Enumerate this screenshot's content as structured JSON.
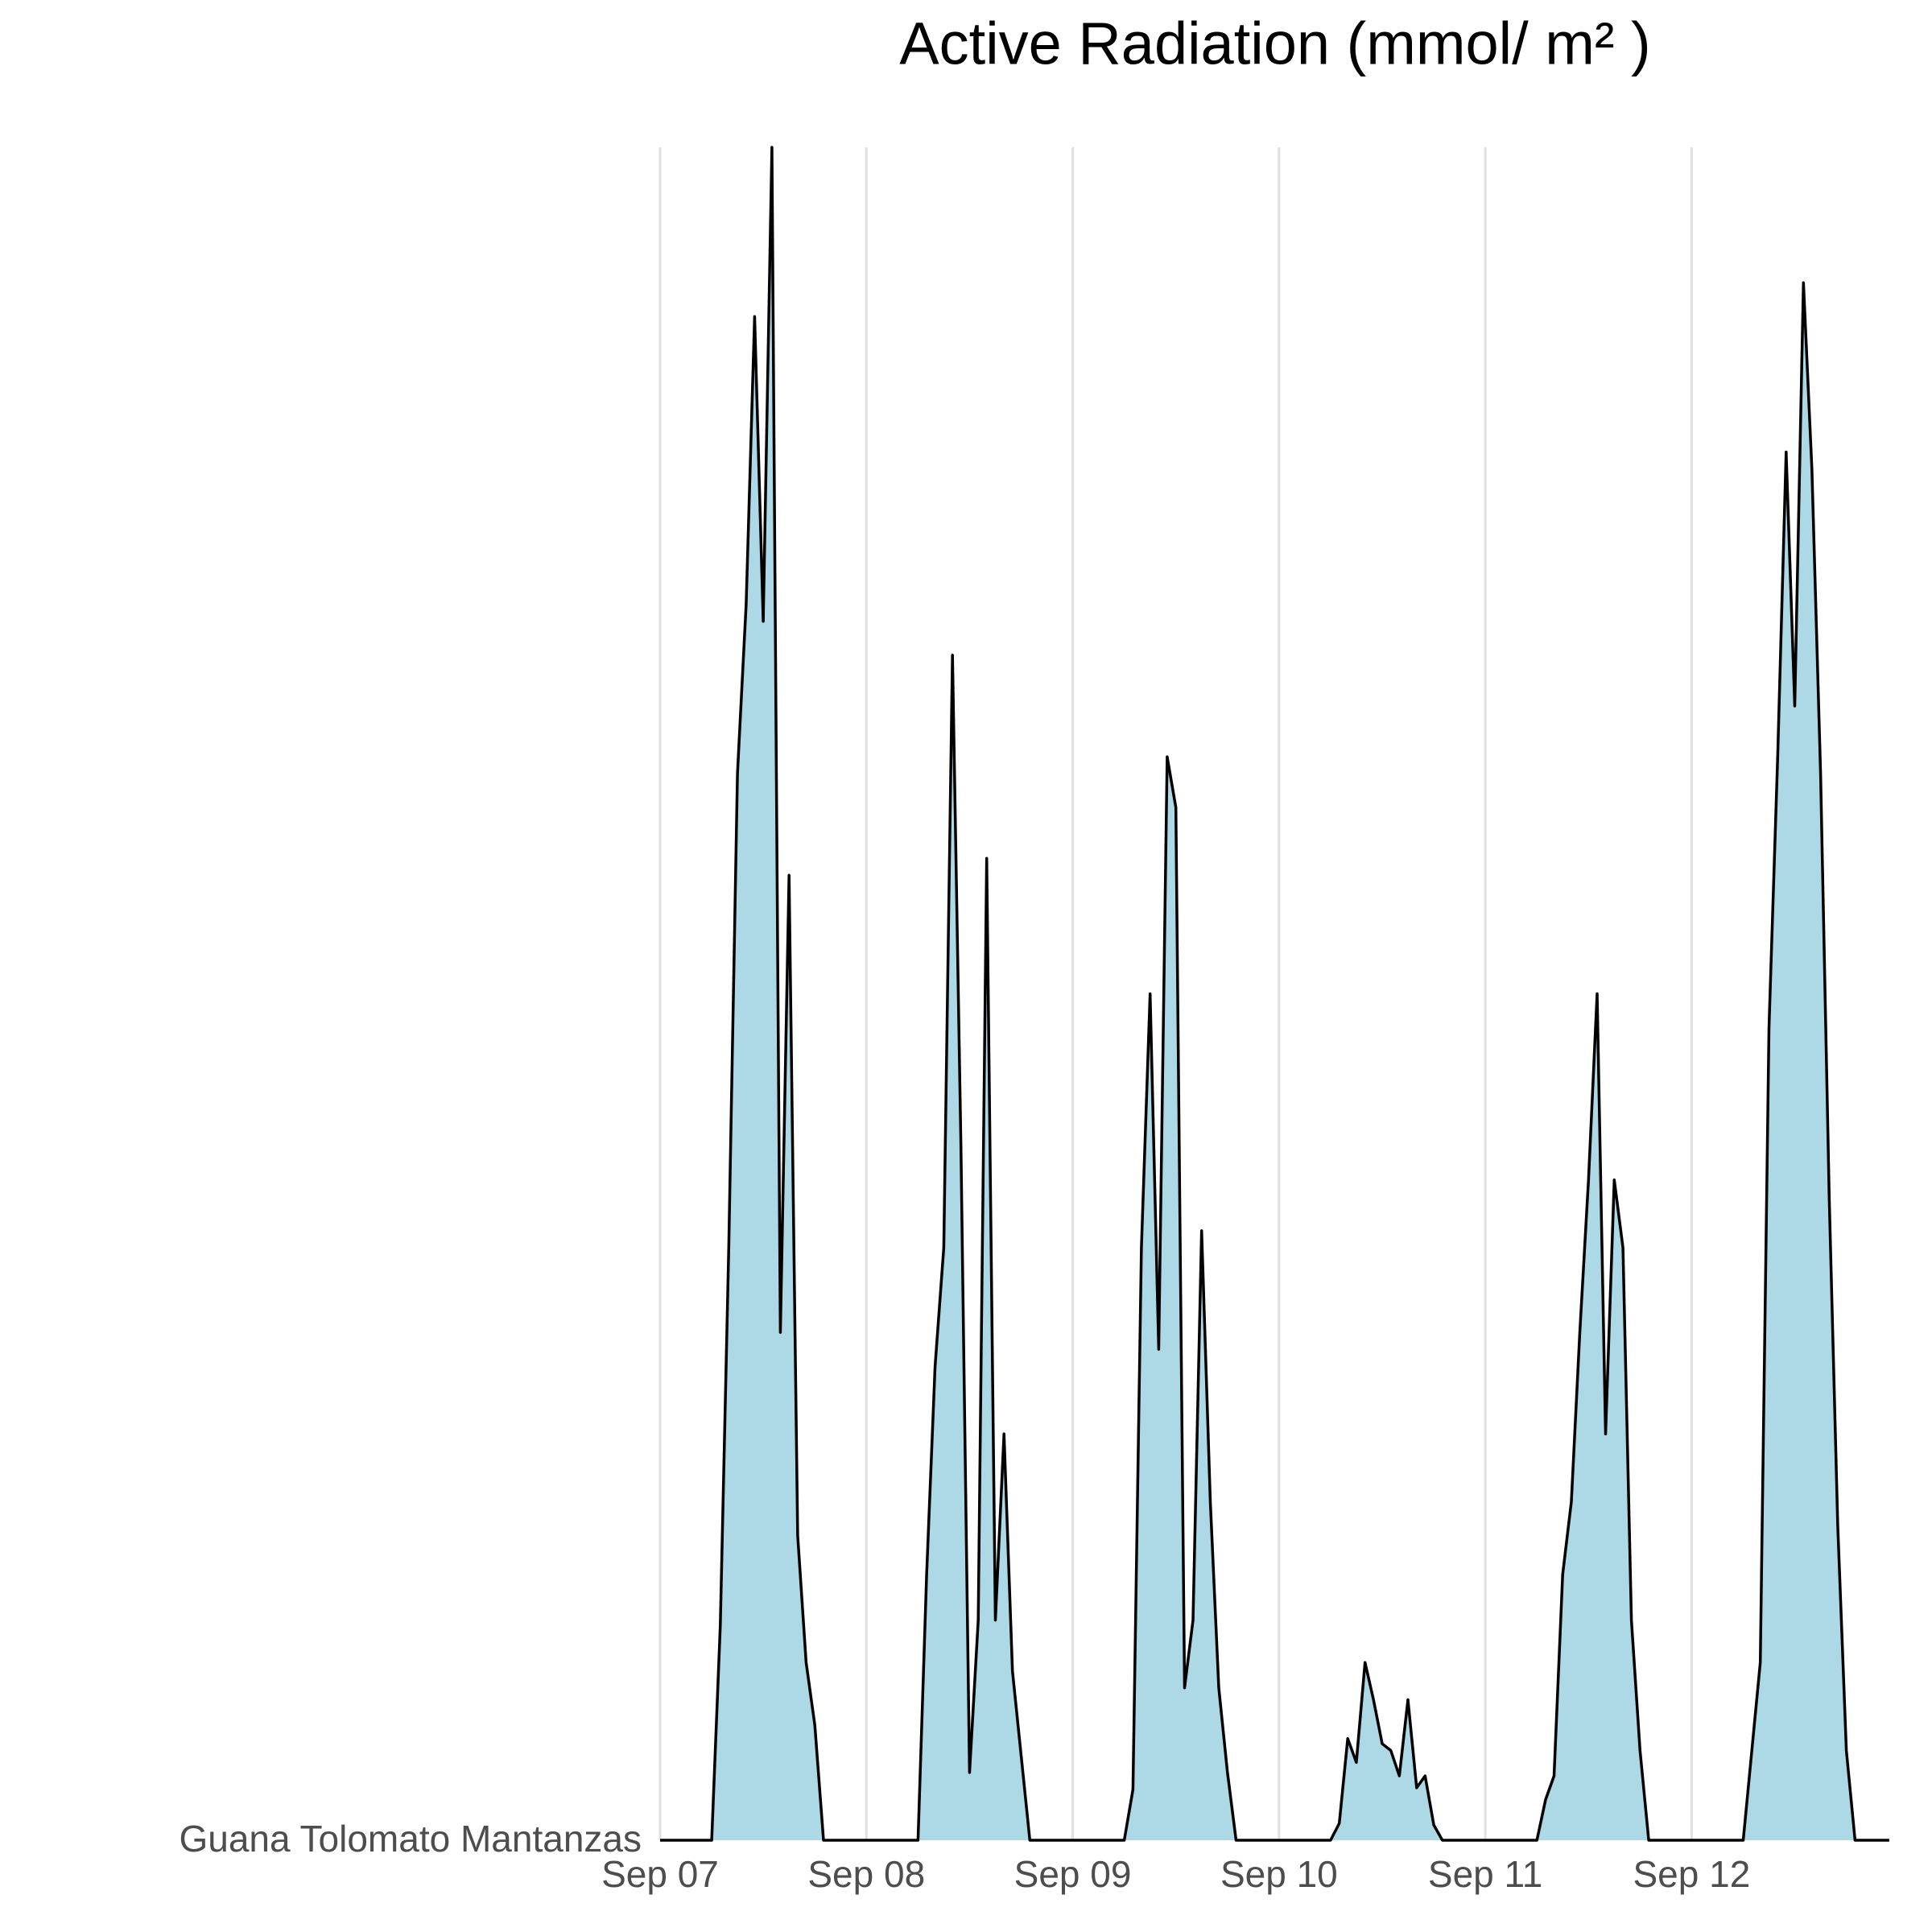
{
  "chart_data": {
    "type": "area",
    "title": "Active Radiation (mmol/ m² )",
    "categories": [
      "Guana Tolomato Mantanzas"
    ],
    "color": "#add8e6",
    "line_color": "#000000",
    "grid": true,
    "xlim": [
      0,
      5.97
    ],
    "ylim": [
      0,
      100
    ],
    "xticks": [
      {
        "value": 0,
        "label": "Sep 07"
      },
      {
        "value": 1,
        "label": "Sep 08"
      },
      {
        "value": 2,
        "label": "Sep 09"
      },
      {
        "value": 3,
        "label": "Sep 10"
      },
      {
        "value": 4,
        "label": "Sep 11"
      },
      {
        "value": 5,
        "label": "Sep 12"
      }
    ],
    "x": [
      0,
      0.25,
      0.292,
      0.333,
      0.375,
      0.417,
      0.458,
      0.5,
      0.542,
      0.583,
      0.625,
      0.667,
      0.708,
      0.75,
      0.792,
      1.25,
      1.292,
      1.333,
      1.375,
      1.417,
      1.458,
      1.5,
      1.542,
      1.583,
      1.625,
      1.667,
      1.708,
      1.75,
      1.792,
      2.25,
      2.292,
      2.333,
      2.375,
      2.417,
      2.458,
      2.5,
      2.542,
      2.583,
      2.625,
      2.667,
      2.708,
      2.75,
      2.792,
      3.25,
      3.292,
      3.333,
      3.375,
      3.417,
      3.458,
      3.5,
      3.542,
      3.583,
      3.625,
      3.667,
      3.708,
      3.75,
      3.792,
      4.25,
      4.292,
      4.333,
      4.375,
      4.417,
      4.458,
      4.5,
      4.542,
      4.583,
      4.625,
      4.667,
      4.708,
      4.75,
      4.792,
      5.25,
      5.292,
      5.333,
      5.375,
      5.417,
      5.458,
      5.5,
      5.542,
      5.583,
      5.625,
      5.667,
      5.708,
      5.75,
      5.792,
      5.958
    ],
    "values": [
      0,
      0,
      12.7,
      35,
      63,
      73,
      90,
      72,
      100,
      30,
      57,
      18,
      10.5,
      6.8,
      0,
      0,
      15.7,
      28,
      35,
      70,
      41,
      4,
      13,
      58,
      13,
      24,
      10,
      5,
      0,
      0,
      3,
      35,
      50,
      29,
      64,
      61,
      9,
      13,
      36,
      20,
      9,
      4,
      0,
      0,
      1,
      6,
      4.6,
      10.5,
      8.3,
      5.7,
      5.3,
      3.8,
      8.3,
      3.1,
      3.8,
      0.9,
      0,
      0,
      2.4,
      3.8,
      15.7,
      20,
      30,
      39,
      50,
      24,
      39,
      35,
      13,
      5.3,
      0,
      0,
      5.3,
      10.5,
      48,
      64,
      82,
      67,
      92,
      81,
      63,
      38,
      18.6,
      5.3,
      0,
      0
    ]
  }
}
